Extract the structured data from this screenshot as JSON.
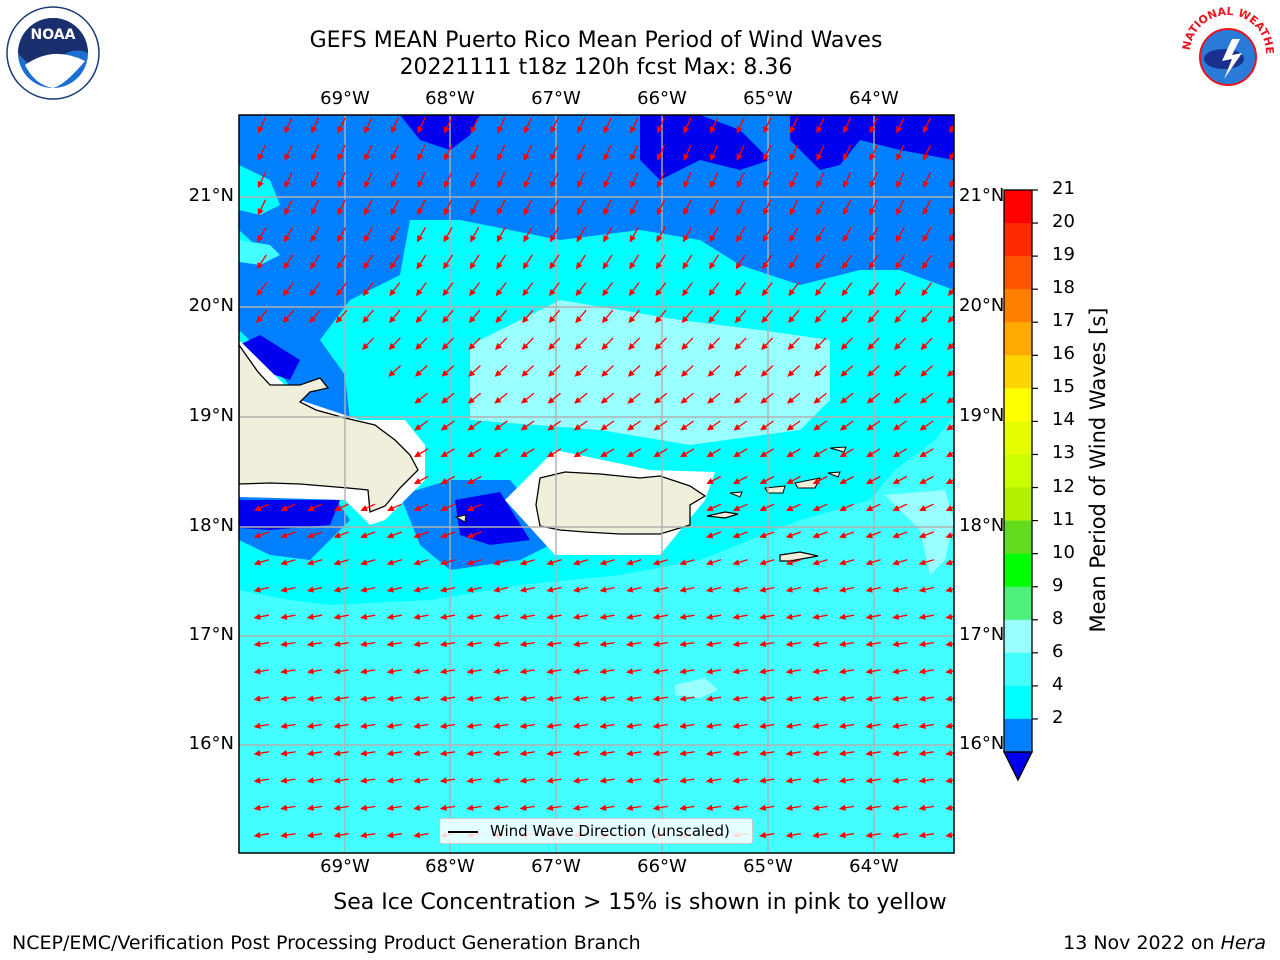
{
  "title_line1": "GEFS MEAN Puerto Rico Mean Period of Wind Waves",
  "title_line2": "20221111 t18z 120h fcst   Max: 8.36",
  "lon_labels": [
    "69°W",
    "68°W",
    "67°W",
    "66°W",
    "65°W",
    "64°W"
  ],
  "lat_labels": [
    "21°N",
    "20°N",
    "19°N",
    "18°N",
    "17°N",
    "16°N"
  ],
  "legend_label": "Wind Wave Direction (unscaled)",
  "colorbar": {
    "label": "Mean Period of Wind Waves [s]",
    "ticks": [
      "21",
      "20",
      "19",
      "18",
      "17",
      "16",
      "15",
      "14",
      "13",
      "12",
      "11",
      "10",
      "9",
      "8",
      "6",
      "4",
      "2"
    ],
    "colors": [
      "#ff0000",
      "#ff2a00",
      "#ff5500",
      "#ff8000",
      "#ffaa00",
      "#ffd500",
      "#ffff00",
      "#e6ff00",
      "#ccff00",
      "#b0f000",
      "#64dc1e",
      "#00ff00",
      "#4cf07a",
      "#99ffff",
      "#44ffff",
      "#00ffff",
      "#0080ff"
    ],
    "under_color": "#0000ee"
  },
  "colors": {
    "water_light": "#44ffff",
    "water_cyan": "#00ffff",
    "water_pale": "#99ffff",
    "water_blue": "#0080ff",
    "water_dark": "#0000ee",
    "land": "#efefdc",
    "arrow": "#ff0000"
  },
  "subtitle": "Sea Ice Concentration > 15% is shown in pink to yellow",
  "footer_left": "NCEP/EMC/Verification Post Processing Product Generation Branch",
  "footer_date": "13 Nov 2022 on",
  "footer_machine": "Hera",
  "logos": {
    "left": "NOAA",
    "right": "NATIONAL WEATHER SERVICE"
  }
}
